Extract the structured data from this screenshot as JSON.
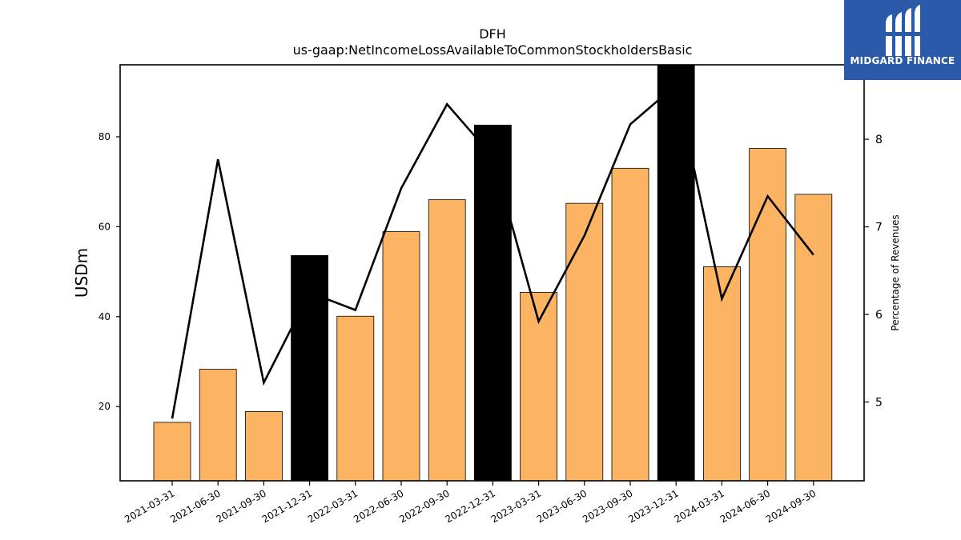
{
  "logo": {
    "text": "MIDGARD FINANCE",
    "icon": "midgard-logo-icon",
    "bg_color": "#2b5aa8"
  },
  "chart_data": {
    "type": "bar",
    "title": "DFH",
    "subtitle": "us-gaap:NetIncomeLossAvailableToCommonStockholdersBasic",
    "ylabel": "USDm",
    "y2label": "Percentage of Revenues",
    "ylim": [
      3.5,
      96
    ],
    "y2lim": [
      4.1,
      8.85
    ],
    "yticks": [
      20,
      40,
      60,
      80
    ],
    "y2ticks": [
      5,
      6,
      7,
      8
    ],
    "grid": false,
    "categories": [
      "2021-03-31",
      "2021-06-30",
      "2021-09-30",
      "2021-12-31",
      "2022-03-31",
      "2022-06-30",
      "2022-09-30",
      "2022-12-31",
      "2023-03-31",
      "2023-06-30",
      "2023-09-30",
      "2023-12-31",
      "2024-03-31",
      "2024-06-30",
      "2024-09-30"
    ],
    "series": [
      {
        "type": "bar",
        "axis": "left",
        "values": [
          16.5,
          28.3,
          18.9,
          53.6,
          40.1,
          58.9,
          66.0,
          82.6,
          45.4,
          65.2,
          73.0,
          96.0,
          51.1,
          77.4,
          67.2
        ],
        "colors": [
          "#fdb462",
          "#fdb462",
          "#fdb462",
          "#000000",
          "#fdb462",
          "#fdb462",
          "#fdb462",
          "#000000",
          "#fdb462",
          "#fdb462",
          "#fdb462",
          "#000000",
          "#fdb462",
          "#fdb462",
          "#fdb462"
        ]
      },
      {
        "type": "line",
        "axis": "right",
        "color": "#000000",
        "values": [
          4.81,
          7.77,
          5.22,
          6.25,
          6.05,
          7.44,
          8.4,
          7.8,
          5.92,
          6.9,
          8.17,
          8.62,
          6.18,
          7.35,
          6.68
        ]
      }
    ]
  }
}
